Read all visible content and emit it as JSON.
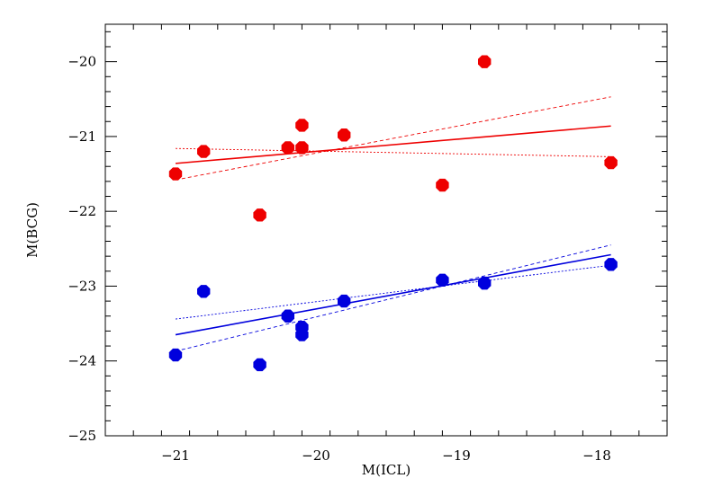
{
  "chart_data": {
    "type": "scatter",
    "title": "",
    "xlabel": "M(ICL)",
    "ylabel": "M(BCG)",
    "xlim": [
      -21.5,
      -17.5
    ],
    "ylim": [
      -25,
      -19.5
    ],
    "x_ticks": [
      -21,
      -20,
      -19,
      -18
    ],
    "x_tick_labels": [
      "−21",
      "−20",
      "−19",
      "−18"
    ],
    "y_ticks": [
      -25,
      -24,
      -23,
      -22,
      -21,
      -20
    ],
    "y_tick_labels": [
      "−25",
      "−24",
      "−23",
      "−22",
      "−21",
      "−20"
    ],
    "grid": false,
    "series": [
      {
        "name": "red",
        "color": "#ee0000",
        "points": [
          {
            "x": -21.0,
            "y": -21.5
          },
          {
            "x": -20.8,
            "y": -21.2
          },
          {
            "x": -20.4,
            "y": -22.05
          },
          {
            "x": -20.2,
            "y": -21.15
          },
          {
            "x": -20.1,
            "y": -20.85
          },
          {
            "x": -20.1,
            "y": -21.15
          },
          {
            "x": -19.8,
            "y": -20.98
          },
          {
            "x": -19.1,
            "y": -21.65
          },
          {
            "x": -18.8,
            "y": -20.0
          },
          {
            "x": -17.9,
            "y": -21.35
          }
        ],
        "fit": {
          "x": [
            -21.0,
            -17.9
          ],
          "y": [
            -21.36,
            -20.86
          ]
        },
        "fit_bounds": [
          {
            "x": [
              -21.0,
              -17.9
            ],
            "y": [
              -21.58,
              -20.47
            ]
          },
          {
            "x": [
              -21.0,
              -17.9
            ],
            "y": [
              -21.16,
              -21.27
            ]
          }
        ]
      },
      {
        "name": "blue",
        "color": "#0000dd",
        "points": [
          {
            "x": -21.0,
            "y": -23.92
          },
          {
            "x": -20.8,
            "y": -23.07
          },
          {
            "x": -20.4,
            "y": -24.05
          },
          {
            "x": -20.2,
            "y": -23.4
          },
          {
            "x": -20.1,
            "y": -23.55
          },
          {
            "x": -20.1,
            "y": -23.65
          },
          {
            "x": -19.8,
            "y": -23.2
          },
          {
            "x": -19.1,
            "y": -22.92
          },
          {
            "x": -18.8,
            "y": -22.96
          },
          {
            "x": -17.9,
            "y": -22.71
          }
        ],
        "fit": {
          "x": [
            -21.0,
            -17.9
          ],
          "y": [
            -23.65,
            -22.58
          ]
        },
        "fit_bounds": [
          {
            "x": [
              -21.0,
              -17.9
            ],
            "y": [
              -23.87,
              -22.45
            ]
          },
          {
            "x": [
              -21.0,
              -17.9
            ],
            "y": [
              -23.44,
              -22.72
            ]
          }
        ]
      }
    ]
  }
}
